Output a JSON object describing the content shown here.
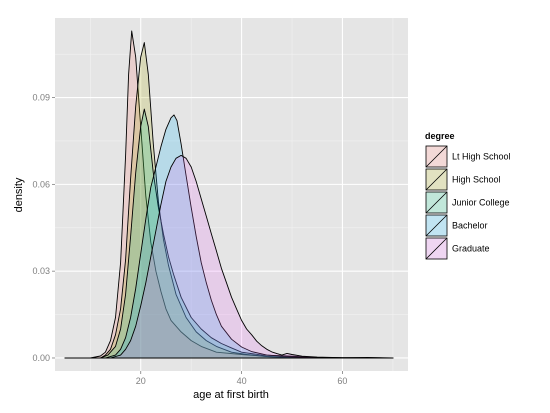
{
  "chart_data": {
    "type": "area",
    "xlabel": "age at first birth",
    "ylabel": "density",
    "xlim": [
      3,
      73
    ],
    "ylim": [
      -0.0045,
      0.1175
    ],
    "x_ticks": [
      {
        "value": 20,
        "label": "20"
      },
      {
        "value": 40,
        "label": "40"
      },
      {
        "value": 60,
        "label": "60"
      }
    ],
    "y_ticks": [
      {
        "value": 0,
        "label": "0.00"
      },
      {
        "value": 0.03,
        "label": "0.03"
      },
      {
        "value": 0.06,
        "label": "0.06"
      },
      {
        "value": 0.09,
        "label": "0.09"
      }
    ],
    "legend": {
      "title": "degree",
      "position": "right"
    },
    "grid": true,
    "panel_color": "#e5e5e5",
    "series": [
      {
        "name": "Lt High School",
        "color": "#f8766d",
        "points": [
          [
            5,
            0
          ],
          [
            10,
            0
          ],
          [
            12,
            0.0007
          ],
          [
            13,
            0.002
          ],
          [
            14,
            0.006
          ],
          [
            15,
            0.014
          ],
          [
            16,
            0.033
          ],
          [
            17,
            0.07
          ],
          [
            17.6,
            0.098
          ],
          [
            18.2,
            0.113
          ],
          [
            19,
            0.104
          ],
          [
            20,
            0.08
          ],
          [
            21,
            0.056
          ],
          [
            22,
            0.04
          ],
          [
            23,
            0.03
          ],
          [
            24,
            0.023
          ],
          [
            25,
            0.017
          ],
          [
            26,
            0.013
          ],
          [
            28,
            0.009
          ],
          [
            30,
            0.006
          ],
          [
            32,
            0.004
          ],
          [
            35,
            0.002
          ],
          [
            40,
            0.0012
          ],
          [
            45,
            0.0005
          ],
          [
            50,
            0.0002
          ],
          [
            55,
            0.0001
          ],
          [
            60,
            0
          ],
          [
            70,
            0
          ]
        ]
      },
      {
        "name": "High School",
        "color": "#a3a500",
        "points": [
          [
            5,
            0
          ],
          [
            12,
            0
          ],
          [
            13,
            0.001
          ],
          [
            14,
            0.003
          ],
          [
            15,
            0.008
          ],
          [
            16,
            0.017
          ],
          [
            17,
            0.034
          ],
          [
            18,
            0.062
          ],
          [
            19,
            0.087
          ],
          [
            20,
            0.104
          ],
          [
            20.7,
            0.109
          ],
          [
            21.5,
            0.098
          ],
          [
            22.5,
            0.074
          ],
          [
            23.5,
            0.054
          ],
          [
            24.5,
            0.041
          ],
          [
            25.5,
            0.032
          ],
          [
            27,
            0.022
          ],
          [
            29,
            0.014
          ],
          [
            31,
            0.009
          ],
          [
            33,
            0.006
          ],
          [
            35,
            0.004
          ],
          [
            38,
            0.002
          ],
          [
            41,
            0.0012
          ],
          [
            45,
            0.0005
          ],
          [
            50,
            0.0002
          ],
          [
            55,
            0.0001
          ],
          [
            60,
            0
          ],
          [
            70,
            0
          ]
        ]
      },
      {
        "name": "Junior College",
        "color": "#00bf7d",
        "points": [
          [
            5,
            0
          ],
          [
            12,
            0
          ],
          [
            13.5,
            0.001
          ],
          [
            15,
            0.004
          ],
          [
            16,
            0.01
          ],
          [
            17,
            0.022
          ],
          [
            18,
            0.042
          ],
          [
            19,
            0.064
          ],
          [
            20,
            0.08
          ],
          [
            20.7,
            0.086
          ],
          [
            21.5,
            0.08
          ],
          [
            22.5,
            0.064
          ],
          [
            23.5,
            0.052
          ],
          [
            24.5,
            0.043
          ],
          [
            25.5,
            0.035
          ],
          [
            26.5,
            0.029
          ],
          [
            28,
            0.021
          ],
          [
            30,
            0.014
          ],
          [
            32,
            0.01
          ],
          [
            34,
            0.007
          ],
          [
            36,
            0.005
          ],
          [
            38,
            0.0035
          ],
          [
            40,
            0.002
          ],
          [
            44,
            0.001
          ],
          [
            48,
            0.0008
          ],
          [
            50,
            0.0006
          ],
          [
            55,
            0.0002
          ],
          [
            60,
            0.0001
          ],
          [
            70,
            0
          ]
        ]
      },
      {
        "name": "Bachelor",
        "color": "#00b0f6",
        "points": [
          [
            5,
            0
          ],
          [
            13,
            0
          ],
          [
            15,
            0.001
          ],
          [
            16,
            0.003
          ],
          [
            17,
            0.007
          ],
          [
            18,
            0.014
          ],
          [
            19,
            0.024
          ],
          [
            20,
            0.036
          ],
          [
            21,
            0.048
          ],
          [
            22,
            0.059
          ],
          [
            23,
            0.066
          ],
          [
            24,
            0.073
          ],
          [
            25,
            0.079
          ],
          [
            26,
            0.083
          ],
          [
            26.6,
            0.084
          ],
          [
            27.2,
            0.082
          ],
          [
            28,
            0.074
          ],
          [
            29,
            0.063
          ],
          [
            30,
            0.052
          ],
          [
            31,
            0.042
          ],
          [
            32,
            0.033
          ],
          [
            33,
            0.026
          ],
          [
            34,
            0.02
          ],
          [
            35,
            0.015
          ],
          [
            36,
            0.011
          ],
          [
            38,
            0.0065
          ],
          [
            40,
            0.0038
          ],
          [
            42,
            0.0022
          ],
          [
            45,
            0.001
          ],
          [
            48,
            0.0006
          ],
          [
            50,
            0.0004
          ],
          [
            55,
            0.0001
          ],
          [
            60,
            0
          ],
          [
            70,
            0
          ]
        ]
      },
      {
        "name": "Graduate",
        "color": "#e76bf3",
        "points": [
          [
            5,
            0
          ],
          [
            14,
            0
          ],
          [
            16,
            0.001
          ],
          [
            17,
            0.003
          ],
          [
            18,
            0.006
          ],
          [
            19,
            0.011
          ],
          [
            20,
            0.018
          ],
          [
            21,
            0.026
          ],
          [
            22,
            0.035
          ],
          [
            23,
            0.044
          ],
          [
            24,
            0.053
          ],
          [
            25,
            0.061
          ],
          [
            26,
            0.066
          ],
          [
            27,
            0.069
          ],
          [
            28,
            0.07
          ],
          [
            29,
            0.069
          ],
          [
            30,
            0.066
          ],
          [
            31,
            0.061
          ],
          [
            32,
            0.055
          ],
          [
            33,
            0.049
          ],
          [
            34,
            0.043
          ],
          [
            35,
            0.037
          ],
          [
            36,
            0.031
          ],
          [
            37,
            0.026
          ],
          [
            38,
            0.021
          ],
          [
            39,
            0.017
          ],
          [
            40,
            0.013
          ],
          [
            41,
            0.01
          ],
          [
            42,
            0.008
          ],
          [
            43,
            0.0058
          ],
          [
            44,
            0.0042
          ],
          [
            45,
            0.003
          ],
          [
            46,
            0.0021
          ],
          [
            47,
            0.0015
          ],
          [
            48,
            0.001
          ],
          [
            49,
            0.0016
          ],
          [
            50,
            0.0012
          ],
          [
            52,
            0.0006
          ],
          [
            55,
            0.0003
          ],
          [
            60,
            0.0001
          ],
          [
            65,
            0.0002
          ],
          [
            70,
            0
          ]
        ]
      }
    ]
  }
}
